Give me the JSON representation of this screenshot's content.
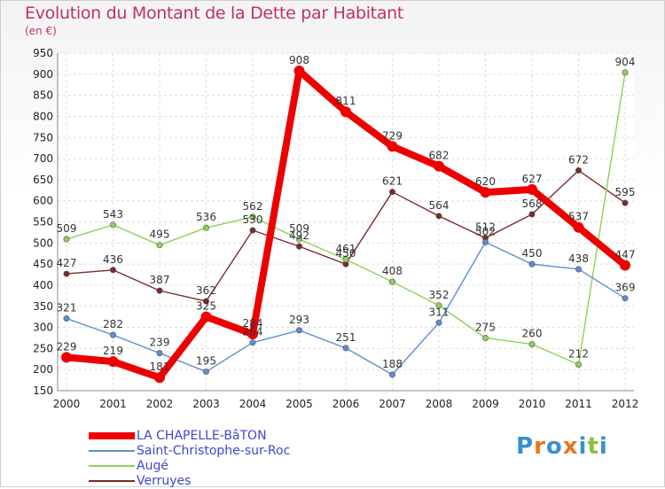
{
  "title": "Evolution du Montant de la Dette par Habitant",
  "unit": "(en €)",
  "logo": {
    "letters": [
      "P",
      "r",
      "o",
      "x",
      "i",
      "t",
      "i"
    ],
    "colors": [
      "#3a8fd0",
      "#e8761c",
      "#3a8fd0",
      "#e8761c",
      "#3a8fd0",
      "#8cbf3a",
      "#3a8fd0"
    ]
  },
  "chart_data": {
    "type": "line",
    "title": "Evolution du Montant de la Dette par Habitant",
    "ylabel": "(en €)",
    "xlabel": "",
    "ylim": [
      150,
      950
    ],
    "yticks": [
      150,
      200,
      250,
      300,
      350,
      400,
      450,
      500,
      550,
      600,
      650,
      700,
      750,
      800,
      850,
      900,
      950
    ],
    "grid": true,
    "legend": "bottom-left",
    "categories": [
      "2000",
      "2001",
      "2002",
      "2003",
      "2004",
      "2005",
      "2006",
      "2007",
      "2008",
      "2009",
      "2010",
      "2011",
      "2012"
    ],
    "series": [
      {
        "name": "LA CHAPELLE-BâTON",
        "color": "#ee0000",
        "values": [
          229,
          219,
          181,
          325,
          284,
          908,
          811,
          729,
          682,
          620,
          627,
          537,
          447
        ]
      },
      {
        "name": "Saint-Christophe-sur-Roc",
        "color": "#5b8fd0",
        "values": [
          321,
          282,
          239,
          195,
          264,
          293,
          251,
          188,
          311,
          502,
          450,
          438,
          369
        ]
      },
      {
        "name": "Augé",
        "color": "#8fd05a",
        "values": [
          509,
          543,
          495,
          536,
          562,
          509,
          461,
          408,
          352,
          275,
          260,
          212,
          904
        ]
      },
      {
        "name": "Verruyes",
        "color": "#7a2a2a",
        "values": [
          427,
          436,
          387,
          362,
          530,
          492,
          450,
          621,
          564,
          512,
          568,
          672,
          595
        ]
      }
    ]
  }
}
